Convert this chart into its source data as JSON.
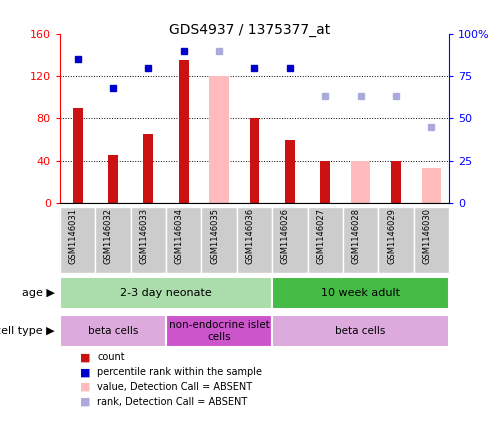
{
  "title": "GDS4937 / 1375377_at",
  "samples": [
    "GSM1146031",
    "GSM1146032",
    "GSM1146033",
    "GSM1146034",
    "GSM1146035",
    "GSM1146036",
    "GSM1146026",
    "GSM1146027",
    "GSM1146028",
    "GSM1146029",
    "GSM1146030"
  ],
  "counts": [
    90,
    45,
    65,
    135,
    null,
    80,
    60,
    40,
    null,
    40,
    null
  ],
  "ranks": [
    85,
    68,
    80,
    90,
    null,
    80,
    80,
    null,
    null,
    null,
    null
  ],
  "absent_values": [
    null,
    null,
    null,
    null,
    120,
    null,
    null,
    null,
    40,
    null,
    33
  ],
  "absent_ranks": [
    null,
    null,
    null,
    null,
    90,
    null,
    null,
    63,
    63,
    63,
    45
  ],
  "count_color": "#cc1111",
  "rank_color": "#0000cc",
  "absent_value_color": "#ffbbbb",
  "absent_rank_color": "#aaaadd",
  "ylim_left": [
    0,
    160
  ],
  "ylim_right": [
    0,
    100
  ],
  "yticks_left": [
    0,
    40,
    80,
    120,
    160
  ],
  "yticks_right": [
    0,
    25,
    50,
    75,
    100
  ],
  "yticklabels_left": [
    "0",
    "40",
    "80",
    "120",
    "160"
  ],
  "yticklabels_right": [
    "0",
    "25",
    "50",
    "75",
    "100%"
  ],
  "age_groups": [
    {
      "label": "2-3 day neonate",
      "start": 0,
      "end": 6,
      "color": "#aaddaa"
    },
    {
      "label": "10 week adult",
      "start": 6,
      "end": 11,
      "color": "#44bb44"
    }
  ],
  "cell_type_groups": [
    {
      "label": "beta cells",
      "start": 0,
      "end": 3,
      "color": "#ddaadd"
    },
    {
      "label": "non-endocrine islet\ncells",
      "start": 3,
      "end": 6,
      "color": "#cc55cc"
    },
    {
      "label": "beta cells",
      "start": 6,
      "end": 11,
      "color": "#ddaadd"
    }
  ],
  "legend_items": [
    {
      "label": "count",
      "color": "#cc1111"
    },
    {
      "label": "percentile rank within the sample",
      "color": "#0000cc"
    },
    {
      "label": "value, Detection Call = ABSENT",
      "color": "#ffbbbb"
    },
    {
      "label": "rank, Detection Call = ABSENT",
      "color": "#aaaadd"
    }
  ],
  "sample_box_color": "#cccccc",
  "background_color": "#ffffff",
  "age_label": "age",
  "cell_type_label": "cell type"
}
